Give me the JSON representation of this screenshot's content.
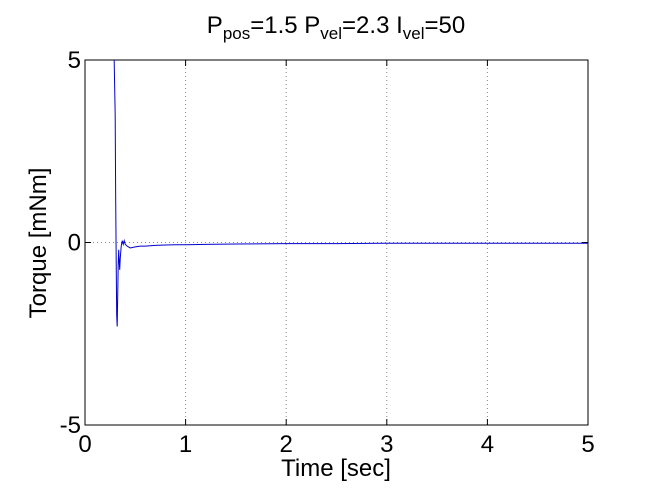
{
  "chart_data": {
    "type": "line",
    "title": {
      "parts": [
        {
          "text": "P",
          "sub": false
        },
        {
          "text": "pos",
          "sub": true
        },
        {
          "text": "=1.5 P",
          "sub": false
        },
        {
          "text": "vel",
          "sub": true
        },
        {
          "text": "=2.3 I",
          "sub": false
        },
        {
          "text": "vel",
          "sub": true
        },
        {
          "text": "=50",
          "sub": false
        }
      ]
    },
    "xlabel": "Time [sec]",
    "ylabel": "Torque [mNm]",
    "xlim": [
      0,
      5
    ],
    "ylim": [
      -5,
      5
    ],
    "xticks": [
      0,
      1,
      2,
      3,
      4,
      5
    ],
    "xtick_labels": [
      "0",
      "1",
      "2",
      "3",
      "4",
      "5"
    ],
    "yticks": [
      -5,
      0,
      5
    ],
    "ytick_labels": [
      "-5",
      "0",
      "5"
    ],
    "grid": true,
    "line_color": "#0000cc",
    "series": [
      {
        "x": [
          0.29,
          0.3,
          0.305,
          0.31,
          0.315,
          0.32,
          0.325,
          0.33,
          0.335,
          0.34,
          0.345,
          0.35,
          0.36,
          0.37,
          0.38,
          0.39,
          0.4,
          0.42,
          0.45,
          0.5,
          0.55,
          0.6,
          0.7,
          0.8,
          0.9,
          1.0,
          1.2,
          1.5,
          2.0,
          2.5,
          3.0,
          3.5,
          4.0,
          4.5,
          5.0
        ],
        "y": [
          5.0,
          3.5,
          1.2,
          -0.5,
          -2.0,
          -2.3,
          -1.5,
          -0.6,
          -0.2,
          -0.5,
          -0.75,
          -0.45,
          -0.1,
          0.05,
          -0.05,
          0.05,
          -0.05,
          -0.1,
          -0.15,
          -0.12,
          -0.1,
          -0.1,
          -0.08,
          -0.07,
          -0.06,
          -0.06,
          -0.05,
          -0.04,
          -0.03,
          -0.03,
          -0.02,
          -0.02,
          -0.02,
          -0.02,
          -0.02
        ]
      }
    ]
  }
}
